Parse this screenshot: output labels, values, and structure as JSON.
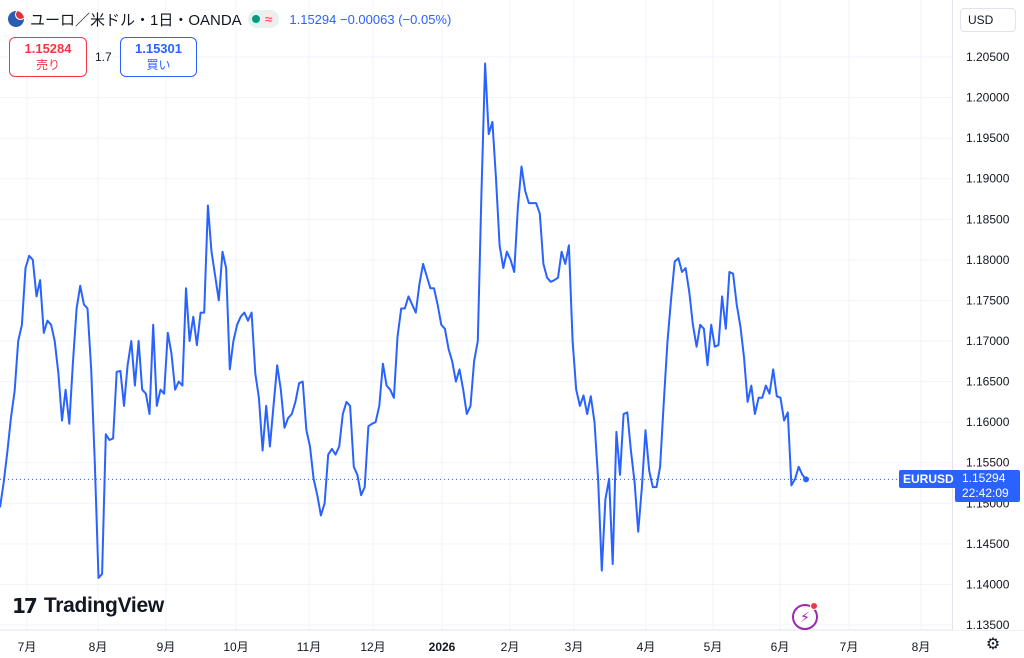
{
  "header": {
    "symbol_title": "ユーロ／米ドル・1日・OANDA",
    "last_price": "1.15294",
    "change": "−0.00063 (−0.05%)"
  },
  "trade": {
    "sell_price": "1.15284",
    "sell_label": "売り",
    "spread": "1.7",
    "buy_price": "1.15301",
    "buy_label": "買い"
  },
  "axis": {
    "currency": "USD"
  },
  "price_label": {
    "symbol": "EURUSD",
    "price": "1.15294",
    "countdown": "22:42:09"
  },
  "branding": {
    "logo_text": "TradingView"
  },
  "colors": {
    "line": "#2962ff",
    "sell": "#f23645",
    "buy": "#2962ff",
    "grid": "#f0f3fa"
  },
  "icons": {
    "symbol": "eur-usd-flag-icon",
    "market_status": "market-open-icon",
    "data_delay": "wave-icon",
    "alert": "lightning-icon",
    "settings": "gear-icon"
  },
  "chart_data": {
    "type": "line",
    "series": [
      {
        "values": [
          1.1495,
          1.1525,
          1.1563,
          1.1605,
          1.1638,
          1.17,
          1.172,
          1.179,
          1.1805,
          1.18,
          1.1755,
          1.1775,
          1.171,
          1.1725,
          1.172,
          1.17,
          1.166,
          1.1602,
          1.164,
          1.1598,
          1.1673,
          1.174,
          1.1768,
          1.1745,
          1.174,
          1.1665,
          1.155,
          1.1408,
          1.1413,
          1.1585,
          1.1578,
          1.158,
          1.1662,
          1.1663,
          1.162,
          1.167,
          1.17,
          1.1645,
          1.17,
          1.164,
          1.1635,
          1.161,
          1.172,
          1.162,
          1.164,
          1.1635,
          1.171,
          1.1685,
          1.164,
          1.165,
          1.1645,
          1.1765,
          1.17,
          1.173,
          1.1695,
          1.1735,
          1.1735,
          1.1867,
          1.181,
          1.178,
          1.175,
          1.181,
          1.179,
          1.1665,
          1.17,
          1.172,
          1.173,
          1.1735,
          1.1725,
          1.1735,
          1.166,
          1.163,
          1.1565,
          1.162,
          1.157,
          1.162,
          1.167,
          1.164,
          1.1593,
          1.1605,
          1.161,
          1.1625,
          1.1648,
          1.165,
          1.159,
          1.157,
          1.153,
          1.151,
          1.1485,
          1.15,
          1.156,
          1.1567,
          1.156,
          1.157,
          1.161,
          1.1625,
          1.162,
          1.1545,
          1.1535,
          1.151,
          1.152,
          1.1595,
          1.1598,
          1.16,
          1.162,
          1.1672,
          1.1645,
          1.164,
          1.163,
          1.1705,
          1.174,
          1.174,
          1.1755,
          1.1745,
          1.1735,
          1.177,
          1.1795,
          1.178,
          1.1765,
          1.1765,
          1.1745,
          1.172,
          1.1715,
          1.169,
          1.1675,
          1.165,
          1.1665,
          1.164,
          1.161,
          1.162,
          1.1675,
          1.17,
          1.188,
          1.2042,
          1.1955,
          1.197,
          1.19,
          1.1818,
          1.179,
          1.181,
          1.18,
          1.1785,
          1.1865,
          1.1915,
          1.1885,
          1.187,
          1.187,
          1.187,
          1.1857,
          1.1795,
          1.1778,
          1.1773,
          1.1775,
          1.1778,
          1.181,
          1.1795,
          1.1818,
          1.17,
          1.164,
          1.162,
          1.1633,
          1.161,
          1.1632,
          1.16,
          1.153,
          1.1417,
          1.1505,
          1.153,
          1.1425,
          1.1588,
          1.1535,
          1.161,
          1.1612,
          1.1565,
          1.1526,
          1.1465,
          1.152,
          1.159,
          1.154,
          1.152,
          1.152,
          1.1545,
          1.1625,
          1.1698,
          1.1752,
          1.1798,
          1.1802,
          1.1785,
          1.179,
          1.176,
          1.172,
          1.1693,
          1.172,
          1.1715,
          1.167,
          1.172,
          1.1693,
          1.1695,
          1.1755,
          1.1715,
          1.1785,
          1.1783,
          1.1745,
          1.1718,
          1.168,
          1.1625,
          1.1645,
          1.161,
          1.163,
          1.163,
          1.1645,
          1.1635,
          1.1665,
          1.1632,
          1.163,
          1.1602,
          1.1612,
          1.1522,
          1.153,
          1.1545,
          1.1535,
          1.15294
        ]
      }
    ],
    "x_tick_labels": [
      "7月",
      "8月",
      "9月",
      "10月",
      "11月",
      "12月",
      "2026",
      "2月",
      "3月",
      "4月",
      "5月",
      "6月",
      "7月",
      "8月"
    ],
    "y_tick_labels": [
      "1.20500",
      "1.20000",
      "1.19500",
      "1.19000",
      "1.18500",
      "1.18000",
      "1.17500",
      "1.17000",
      "1.16500",
      "1.16000",
      "1.15500",
      "1.15000",
      "1.14500",
      "1.14000",
      "1.13500"
    ],
    "ylim": [
      1.1335,
      1.2085
    ],
    "last_value": 1.15294,
    "grid": true
  }
}
